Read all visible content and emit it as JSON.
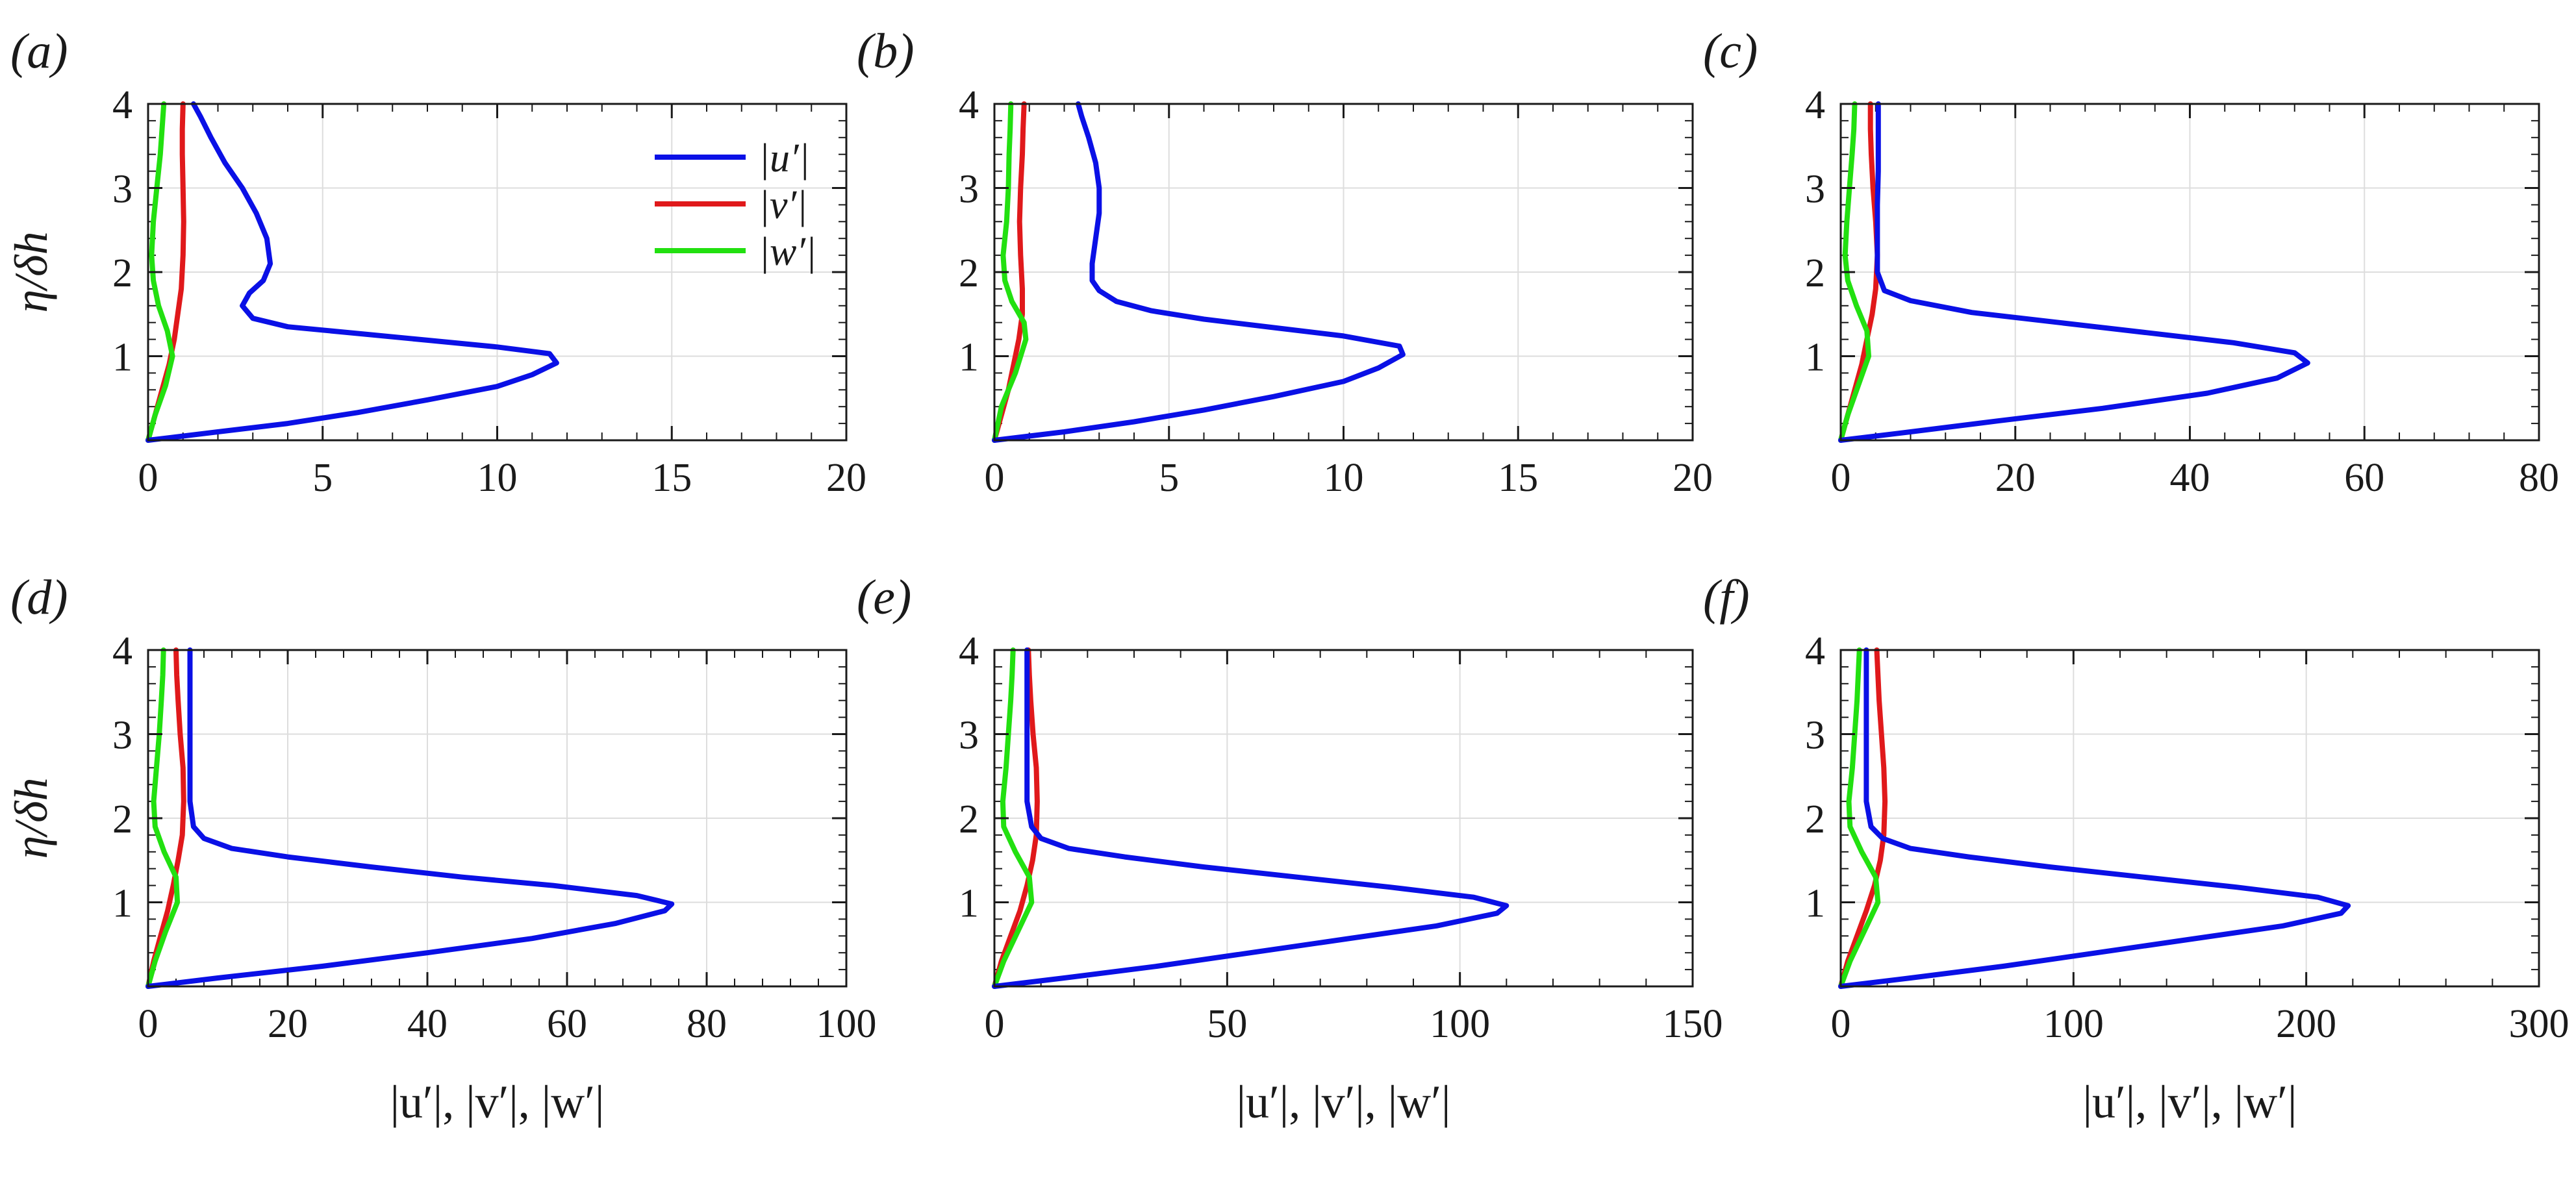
{
  "colors": {
    "u": "#0a10e6",
    "v": "#e0191b",
    "w": "#22e010",
    "grid": "#dddddd",
    "axis": "#1a1a1a"
  },
  "legend": {
    "placement": "top-right",
    "panel": "a",
    "entries": [
      "|u′|",
      "|v′|",
      "|w′|"
    ]
  },
  "ylabel": "η/δh",
  "chart_data": [
    {
      "type": "line",
      "panel": "(a)",
      "xlim": [
        0,
        20
      ],
      "ylim": [
        0,
        4
      ],
      "xticks": [
        "0",
        "5",
        "10",
        "15",
        "20"
      ],
      "yticks": [
        "1",
        "2",
        "3",
        "4"
      ],
      "xlabel": "",
      "grid": true,
      "series": [
        {
          "name": "|u′|",
          "x": [
            0,
            2,
            4,
            6,
            8,
            10,
            11,
            11.7,
            11.5,
            10,
            8,
            6,
            4,
            3,
            2.7,
            2.9,
            3.3,
            3.5,
            3.4,
            3.1,
            2.7,
            2.2,
            1.8,
            1.5,
            1.3
          ],
          "y": [
            0,
            0.1,
            0.2,
            0.33,
            0.48,
            0.64,
            0.78,
            0.92,
            1.03,
            1.11,
            1.19,
            1.27,
            1.35,
            1.45,
            1.6,
            1.75,
            1.9,
            2.1,
            2.4,
            2.7,
            3.0,
            3.3,
            3.6,
            3.85,
            4.0
          ]
        },
        {
          "name": "|v′|",
          "x": [
            0,
            0.2,
            0.4,
            0.6,
            0.75,
            0.85,
            0.95,
            1.0,
            1.02,
            1.0,
            0.98,
            0.98,
            1.0
          ],
          "y": [
            0,
            0.3,
            0.6,
            0.9,
            1.2,
            1.5,
            1.8,
            2.2,
            2.6,
            3.0,
            3.4,
            3.7,
            4.0
          ]
        },
        {
          "name": "|w′|",
          "x": [
            0,
            0.2,
            0.5,
            0.7,
            0.55,
            0.3,
            0.15,
            0.1,
            0.15,
            0.25,
            0.35,
            0.4,
            0.45
          ],
          "y": [
            0,
            0.3,
            0.65,
            1.0,
            1.3,
            1.6,
            1.9,
            2.2,
            2.6,
            3.0,
            3.4,
            3.7,
            4.0
          ]
        }
      ]
    },
    {
      "type": "line",
      "panel": "(b)",
      "xlim": [
        0,
        20
      ],
      "ylim": [
        0,
        4
      ],
      "xticks": [
        "0",
        "5",
        "10",
        "15",
        "20"
      ],
      "yticks": [
        "1",
        "2",
        "3",
        "4"
      ],
      "xlabel": "",
      "grid": true,
      "series": [
        {
          "name": "|u′|",
          "x": [
            0,
            2,
            4,
            6,
            8,
            10,
            11,
            11.7,
            11.6,
            10,
            8,
            6,
            4.5,
            3.5,
            3.0,
            2.8,
            2.8,
            2.9,
            3.0,
            3.0,
            2.9,
            2.7,
            2.5,
            2.4
          ],
          "y": [
            0,
            0.1,
            0.22,
            0.36,
            0.52,
            0.7,
            0.86,
            1.02,
            1.12,
            1.24,
            1.34,
            1.44,
            1.54,
            1.65,
            1.78,
            1.9,
            2.1,
            2.4,
            2.7,
            3.0,
            3.3,
            3.6,
            3.85,
            4.0
          ]
        },
        {
          "name": "|v′|",
          "x": [
            0,
            0.2,
            0.4,
            0.55,
            0.7,
            0.8,
            0.8,
            0.75,
            0.72,
            0.75,
            0.8,
            0.82,
            0.85
          ],
          "y": [
            0,
            0.3,
            0.6,
            0.9,
            1.2,
            1.5,
            1.8,
            2.2,
            2.6,
            3.0,
            3.4,
            3.7,
            4.0
          ]
        },
        {
          "name": "|w′|",
          "x": [
            0,
            0.2,
            0.6,
            0.9,
            0.85,
            0.5,
            0.3,
            0.25,
            0.35,
            0.4,
            0.42,
            0.45,
            0.47
          ],
          "y": [
            0,
            0.4,
            0.8,
            1.2,
            1.4,
            1.65,
            1.9,
            2.2,
            2.6,
            3.0,
            3.4,
            3.7,
            4.0
          ]
        }
      ]
    },
    {
      "type": "line",
      "panel": "(c)",
      "xlim": [
        0,
        80
      ],
      "ylim": [
        0,
        4
      ],
      "xticks": [
        "0",
        "20",
        "40",
        "60",
        "80"
      ],
      "yticks": [
        "1",
        "2",
        "3",
        "4"
      ],
      "xlabel": "",
      "grid": true,
      "series": [
        {
          "name": "|u′|",
          "x": [
            0,
            8,
            18,
            30,
            42,
            50,
            53.5,
            52,
            45,
            35,
            25,
            15,
            8,
            5,
            4.2,
            4.2,
            4.2,
            4.3,
            4.3,
            4.3
          ],
          "y": [
            0,
            0.1,
            0.23,
            0.38,
            0.56,
            0.74,
            0.92,
            1.04,
            1.16,
            1.28,
            1.4,
            1.52,
            1.66,
            1.78,
            2.0,
            2.4,
            2.8,
            3.2,
            3.6,
            4.0
          ]
        },
        {
          "name": "|v′|",
          "x": [
            0,
            0.8,
            1.6,
            2.4,
            3.0,
            3.6,
            4.0,
            4.2,
            4.0,
            3.7,
            3.5,
            3.4,
            3.4
          ],
          "y": [
            0,
            0.3,
            0.6,
            0.9,
            1.2,
            1.5,
            1.8,
            2.2,
            2.6,
            3.0,
            3.4,
            3.7,
            4.0
          ]
        },
        {
          "name": "|w′|",
          "x": [
            0,
            0.8,
            2.0,
            3.2,
            3.0,
            1.8,
            0.8,
            0.5,
            0.7,
            1.0,
            1.3,
            1.5,
            1.6
          ],
          "y": [
            0,
            0.3,
            0.65,
            1.0,
            1.3,
            1.6,
            1.9,
            2.2,
            2.6,
            3.0,
            3.4,
            3.7,
            4.0
          ]
        }
      ]
    },
    {
      "type": "line",
      "panel": "(d)",
      "xlim": [
        0,
        100
      ],
      "ylim": [
        0,
        4
      ],
      "xticks": [
        "0",
        "20",
        "40",
        "60",
        "80",
        "100"
      ],
      "yticks": [
        "1",
        "2",
        "3",
        "4"
      ],
      "xlabel": "|u′|, |v′|, |w′|",
      "grid": true,
      "series": [
        {
          "name": "|u′|",
          "x": [
            0,
            10,
            25,
            40,
            55,
            67,
            74,
            75,
            70,
            58,
            45,
            32,
            20,
            12,
            8,
            6.5,
            6.0,
            6.0,
            6.0,
            6.0,
            6.0
          ],
          "y": [
            0,
            0.1,
            0.24,
            0.4,
            0.57,
            0.75,
            0.9,
            0.98,
            1.08,
            1.2,
            1.3,
            1.42,
            1.54,
            1.64,
            1.76,
            1.9,
            2.2,
            2.6,
            3.0,
            3.5,
            4.0
          ]
        },
        {
          "name": "|v′|",
          "x": [
            0,
            0.8,
            1.8,
            2.8,
            3.6,
            4.3,
            4.9,
            5.1,
            5.0,
            4.6,
            4.3,
            4.1,
            4.0
          ],
          "y": [
            0,
            0.3,
            0.6,
            0.9,
            1.2,
            1.5,
            1.8,
            2.2,
            2.6,
            3.0,
            3.4,
            3.7,
            4.0
          ]
        },
        {
          "name": "|w′|",
          "x": [
            0,
            1.0,
            2.5,
            4.2,
            4.0,
            2.3,
            1.0,
            0.8,
            1.2,
            1.6,
            1.9,
            2.1,
            2.2
          ],
          "y": [
            0,
            0.3,
            0.65,
            1.0,
            1.3,
            1.6,
            1.9,
            2.2,
            2.6,
            3.0,
            3.4,
            3.7,
            4.0
          ]
        }
      ]
    },
    {
      "type": "line",
      "panel": "(e)",
      "xlim": [
        0,
        150
      ],
      "ylim": [
        0,
        4
      ],
      "xticks": [
        "0",
        "50",
        "100",
        "150"
      ],
      "yticks": [
        "1",
        "2",
        "3",
        "4"
      ],
      "xlabel": "|u′|, |v′|, |w′|",
      "grid": true,
      "series": [
        {
          "name": "|u′|",
          "x": [
            0,
            15,
            35,
            55,
            75,
            95,
            108,
            110,
            103,
            85,
            65,
            45,
            28,
            16,
            10,
            8,
            7,
            7,
            7,
            7,
            7
          ],
          "y": [
            0,
            0.1,
            0.24,
            0.4,
            0.56,
            0.72,
            0.87,
            0.96,
            1.06,
            1.18,
            1.3,
            1.42,
            1.54,
            1.64,
            1.76,
            1.9,
            2.2,
            2.6,
            3.0,
            3.5,
            4.0
          ]
        },
        {
          "name": "|v′|",
          "x": [
            0,
            1.5,
            3.5,
            5.5,
            7.0,
            8.2,
            9.0,
            9.2,
            9.0,
            8.3,
            7.8,
            7.5,
            7.3
          ],
          "y": [
            0,
            0.3,
            0.6,
            0.9,
            1.2,
            1.5,
            1.8,
            2.2,
            2.6,
            3.0,
            3.4,
            3.7,
            4.0
          ]
        },
        {
          "name": "|w′|",
          "x": [
            0,
            2,
            5,
            8,
            7.5,
            4.5,
            2.0,
            1.8,
            2.5,
            3.0,
            3.5,
            3.8,
            4.0
          ],
          "y": [
            0,
            0.3,
            0.65,
            1.0,
            1.3,
            1.6,
            1.9,
            2.2,
            2.6,
            3.0,
            3.4,
            3.7,
            4.0
          ]
        }
      ]
    },
    {
      "type": "line",
      "panel": "(f)",
      "xlim": [
        0,
        300
      ],
      "ylim": [
        0,
        4
      ],
      "xticks": [
        "0",
        "100",
        "200",
        "300"
      ],
      "yticks": [
        "1",
        "2",
        "3",
        "4"
      ],
      "xlabel": "|u′|, |v′|, |w′|",
      "grid": true,
      "series": [
        {
          "name": "|u′|",
          "x": [
            0,
            30,
            70,
            110,
            150,
            190,
            215,
            218,
            205,
            170,
            130,
            90,
            55,
            30,
            18,
            13,
            11,
            11,
            11,
            11,
            11
          ],
          "y": [
            0,
            0.1,
            0.24,
            0.4,
            0.56,
            0.72,
            0.87,
            0.96,
            1.06,
            1.18,
            1.3,
            1.42,
            1.54,
            1.64,
            1.76,
            1.9,
            2.2,
            2.6,
            3.0,
            3.5,
            4.0
          ]
        },
        {
          "name": "|v′|",
          "x": [
            0,
            3,
            7,
            11,
            14.5,
            17,
            18.5,
            19,
            18.5,
            17.5,
            16.5,
            16,
            15.5
          ],
          "y": [
            0,
            0.3,
            0.6,
            0.9,
            1.2,
            1.5,
            1.8,
            2.2,
            2.6,
            3.0,
            3.4,
            3.7,
            4.0
          ]
        },
        {
          "name": "|w′|",
          "x": [
            0,
            4,
            10,
            16,
            15,
            9,
            4,
            3.5,
            5,
            6,
            7,
            7.5,
            8
          ],
          "y": [
            0,
            0.3,
            0.65,
            1.0,
            1.3,
            1.6,
            1.9,
            2.2,
            2.6,
            3.0,
            3.4,
            3.7,
            4.0
          ]
        }
      ]
    }
  ]
}
